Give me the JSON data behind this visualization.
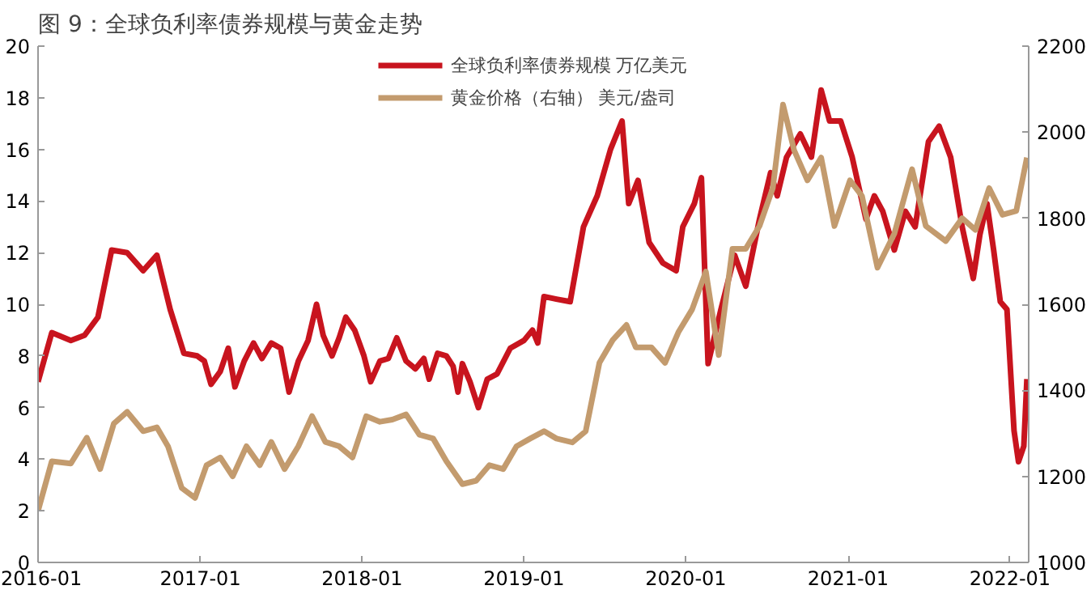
{
  "chart_data": {
    "type": "line",
    "title": "图 9：全球负利率债券规模与黄金走势",
    "xlim": [
      "2016-01-01",
      "2022-02-12"
    ],
    "xticks": [
      {
        "value": "2016-01-01",
        "label": "2016-01"
      },
      {
        "value": "2017-01-01",
        "label": "2017-01"
      },
      {
        "value": "2018-01-01",
        "label": "2018-01"
      },
      {
        "value": "2019-01-01",
        "label": "2019-01"
      },
      {
        "value": "2020-01-01",
        "label": "2020-01"
      },
      {
        "value": "2021-01-01",
        "label": "2021-01"
      },
      {
        "value": "2022-01-01",
        "label": "2022-01"
      }
    ],
    "ylim": [
      0,
      20
    ],
    "yticks": [
      0,
      2,
      4,
      6,
      8,
      10,
      12,
      14,
      16,
      18,
      20
    ],
    "y2lim": [
      1000,
      2200
    ],
    "y2ticks": [
      1000,
      1200,
      1400,
      1600,
      1800,
      2000,
      2200
    ],
    "grid": false,
    "legend": "top",
    "line_style": "solid",
    "series": [
      {
        "name": "全球负利率债券规模 万亿美元",
        "color": "#c8141e",
        "x": [
          "2016-01-01",
          "2016-02-01",
          "2016-03-15",
          "2016-04-15",
          "2016-05-15",
          "2016-06-15",
          "2016-07-20",
          "2016-08-25",
          "2016-09-25",
          "2016-10-25",
          "2016-11-25",
          "2016-12-25",
          "2017-01-10",
          "2017-01-25",
          "2017-02-15",
          "2017-03-05",
          "2017-03-20",
          "2017-04-10",
          "2017-05-01",
          "2017-05-20",
          "2017-06-10",
          "2017-07-01",
          "2017-07-20",
          "2017-08-10",
          "2017-09-01",
          "2017-09-20",
          "2017-10-05",
          "2017-10-25",
          "2017-11-10",
          "2017-11-25",
          "2017-12-15",
          "2018-01-05",
          "2018-01-20",
          "2018-02-10",
          "2018-03-01",
          "2018-03-20",
          "2018-04-10",
          "2018-05-01",
          "2018-05-20",
          "2018-06-01",
          "2018-06-20",
          "2018-07-10",
          "2018-07-25",
          "2018-08-05",
          "2018-08-15",
          "2018-09-01",
          "2018-09-20",
          "2018-10-10",
          "2018-11-01",
          "2018-12-01",
          "2019-01-01",
          "2019-01-20",
          "2019-02-01",
          "2019-02-15",
          "2019-03-15",
          "2019-04-15",
          "2019-05-15",
          "2019-06-15",
          "2019-07-15",
          "2019-08-10",
          "2019-08-25",
          "2019-09-15",
          "2019-10-10",
          "2019-11-10",
          "2019-12-10",
          "2019-12-25",
          "2020-01-20",
          "2020-02-05",
          "2020-02-20",
          "2020-03-20",
          "2020-04-20",
          "2020-05-15",
          "2020-06-15",
          "2020-07-10",
          "2020-07-25",
          "2020-08-15",
          "2020-09-15",
          "2020-10-10",
          "2020-11-01",
          "2020-11-20",
          "2020-12-15",
          "2021-01-10",
          "2021-02-10",
          "2021-03-01",
          "2021-03-20",
          "2021-04-15",
          "2021-05-10",
          "2021-06-01",
          "2021-07-01",
          "2021-07-25",
          "2021-08-20",
          "2021-09-15",
          "2021-10-10",
          "2021-10-25",
          "2021-11-10",
          "2021-11-25",
          "2021-12-10",
          "2021-12-25",
          "2022-01-10",
          "2022-01-20",
          "2022-02-01",
          "2022-02-08"
        ],
        "values": [
          7.0,
          8.9,
          8.6,
          8.8,
          9.5,
          12.1,
          12.0,
          11.3,
          11.9,
          9.8,
          8.1,
          8.0,
          7.8,
          6.9,
          7.4,
          8.3,
          6.8,
          7.8,
          8.5,
          7.9,
          8.5,
          8.3,
          6.6,
          7.8,
          8.6,
          10.0,
          8.8,
          8.0,
          8.7,
          9.5,
          9.0,
          8.0,
          7.0,
          7.8,
          7.9,
          8.7,
          7.8,
          7.5,
          7.9,
          7.1,
          8.1,
          8.0,
          7.6,
          6.6,
          7.7,
          7.0,
          6.0,
          7.1,
          7.3,
          8.3,
          8.6,
          9.0,
          8.5,
          10.3,
          10.2,
          10.1,
          13.0,
          14.2,
          16.0,
          17.1,
          13.9,
          14.8,
          12.4,
          11.6,
          11.3,
          13.0,
          13.9,
          14.9,
          7.7,
          9.8,
          11.9,
          10.7,
          13.3,
          15.1,
          14.2,
          15.7,
          16.6,
          15.7,
          18.3,
          17.1,
          17.1,
          15.7,
          13.3,
          14.2,
          13.6,
          12.1,
          13.6,
          13.0,
          16.3,
          16.9,
          15.7,
          13.0,
          11.0,
          12.7,
          13.9,
          12.1,
          10.1,
          9.8,
          5.1,
          3.9,
          4.5,
          7.1
        ]
      },
      {
        "name": "黄金价格（右轴） 美元/盎司",
        "color": "#c39b6e",
        "axis": "y2",
        "x": [
          "2016-01-01",
          "2016-02-01",
          "2016-03-15",
          "2016-04-20",
          "2016-05-20",
          "2016-06-20",
          "2016-07-20",
          "2016-08-25",
          "2016-09-25",
          "2016-10-20",
          "2016-11-20",
          "2016-12-20",
          "2017-01-15",
          "2017-02-15",
          "2017-03-15",
          "2017-04-15",
          "2017-05-15",
          "2017-06-10",
          "2017-07-10",
          "2017-08-10",
          "2017-09-10",
          "2017-10-10",
          "2017-11-10",
          "2017-12-10",
          "2018-01-10",
          "2018-02-10",
          "2018-03-10",
          "2018-04-10",
          "2018-05-10",
          "2018-06-10",
          "2018-07-10",
          "2018-08-15",
          "2018-09-15",
          "2018-10-15",
          "2018-11-15",
          "2018-12-15",
          "2019-01-15",
          "2019-02-15",
          "2019-03-15",
          "2019-04-20",
          "2019-05-20",
          "2019-06-20",
          "2019-07-20",
          "2019-08-20",
          "2019-09-10",
          "2019-10-15",
          "2019-11-15",
          "2019-12-15",
          "2020-01-15",
          "2020-02-15",
          "2020-03-15",
          "2020-04-15",
          "2020-05-15",
          "2020-06-15",
          "2020-07-15",
          "2020-08-07",
          "2020-09-01",
          "2020-10-01",
          "2020-11-01",
          "2020-12-01",
          "2021-01-05",
          "2021-02-01",
          "2021-03-08",
          "2021-04-15",
          "2021-05-25",
          "2021-06-25",
          "2021-08-09",
          "2021-09-15",
          "2021-10-15",
          "2021-11-15",
          "2021-12-15",
          "2022-01-15",
          "2022-02-08"
        ],
        "values": [
          1120,
          1235,
          1230,
          1290,
          1217,
          1323,
          1350,
          1305,
          1314,
          1270,
          1173,
          1150,
          1226,
          1244,
          1200,
          1270,
          1226,
          1280,
          1217,
          1270,
          1340,
          1280,
          1270,
          1244,
          1340,
          1327,
          1332,
          1344,
          1297,
          1288,
          1235,
          1182,
          1190,
          1226,
          1217,
          1270,
          1288,
          1305,
          1288,
          1279,
          1305,
          1464,
          1517,
          1552,
          1500,
          1500,
          1464,
          1535,
          1588,
          1676,
          1482,
          1729,
          1729,
          1782,
          1870,
          2064,
          1958,
          1888,
          1941,
          1782,
          1888,
          1852,
          1685,
          1764,
          1914,
          1782,
          1747,
          1800,
          1773,
          1870,
          1808,
          1817,
          1941
        ]
      }
    ]
  }
}
